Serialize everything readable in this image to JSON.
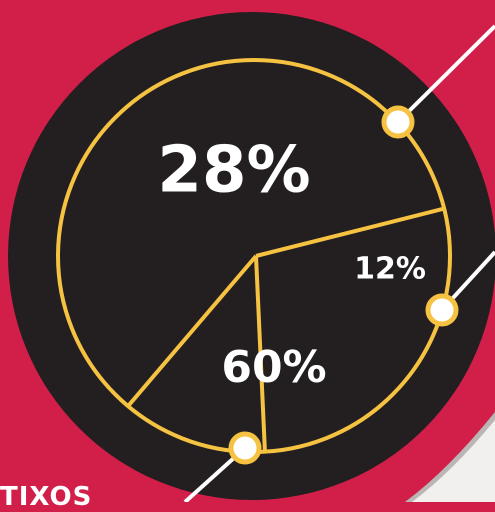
{
  "colors": {
    "background": "#d21f4a",
    "disc": "#231f20",
    "accent": "#f5c242",
    "text": "#ffffff",
    "page_curl": "#f2f0ee"
  },
  "chart_data": {
    "type": "pie",
    "title": "",
    "slices": [
      {
        "label": "28%",
        "value": 28
      },
      {
        "label": "12%",
        "value": 12
      },
      {
        "label": "60%",
        "value": 60
      }
    ]
  },
  "footer_fragment": "TIXOS"
}
